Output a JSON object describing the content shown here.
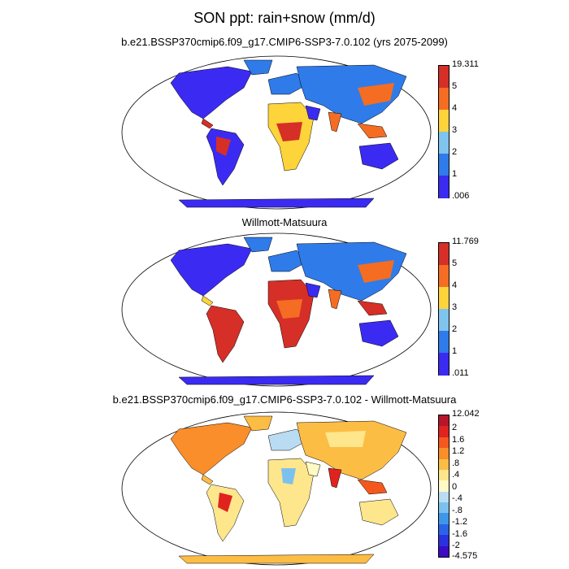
{
  "title": "SON ppt: rain+snow (mm/d)",
  "panels": [
    {
      "subtitle": "b.e21.BSSP370cmip6.f09_g17.CMIP6-SSP3-7.0.102 (yrs 2075-2099)",
      "colorbar": {
        "labels": [
          "19.311",
          "5",
          "4",
          "3",
          "2",
          "1",
          ".006"
        ],
        "colors": [
          "#d62f27",
          "#f46d22",
          "#fdd43a",
          "#7fc3ef",
          "#2f7bea",
          "#3b2bf2"
        ]
      }
    },
    {
      "subtitle": "Willmott-Matsuura",
      "colorbar": {
        "labels": [
          "11.769",
          "5",
          "4",
          "3",
          "2",
          "1",
          ".011"
        ],
        "colors": [
          "#d62f27",
          "#f46d22",
          "#fdd43a",
          "#7fc3ef",
          "#2f7bea",
          "#3b2bf2"
        ]
      }
    },
    {
      "subtitle": "b.e21.BSSP370cmip6.f09_g17.CMIP6-SSP3-7.0.102 - Willmott-Matsuura",
      "colorbar": {
        "labels": [
          "12.042",
          "2",
          "1.6",
          "1.2",
          ".8",
          ".4",
          "0",
          "-.4",
          "-.8",
          "-1.2",
          "-1.6",
          "-2",
          "-4.575"
        ],
        "colors": [
          "#b5162a",
          "#e0231f",
          "#f5581d",
          "#f98e2b",
          "#fcbd44",
          "#fde68c",
          "#fff9c5",
          "#b9dcf2",
          "#7cc1ee",
          "#3e97e8",
          "#2c63e6",
          "#2a31df",
          "#3a0cc4"
        ]
      }
    }
  ]
}
